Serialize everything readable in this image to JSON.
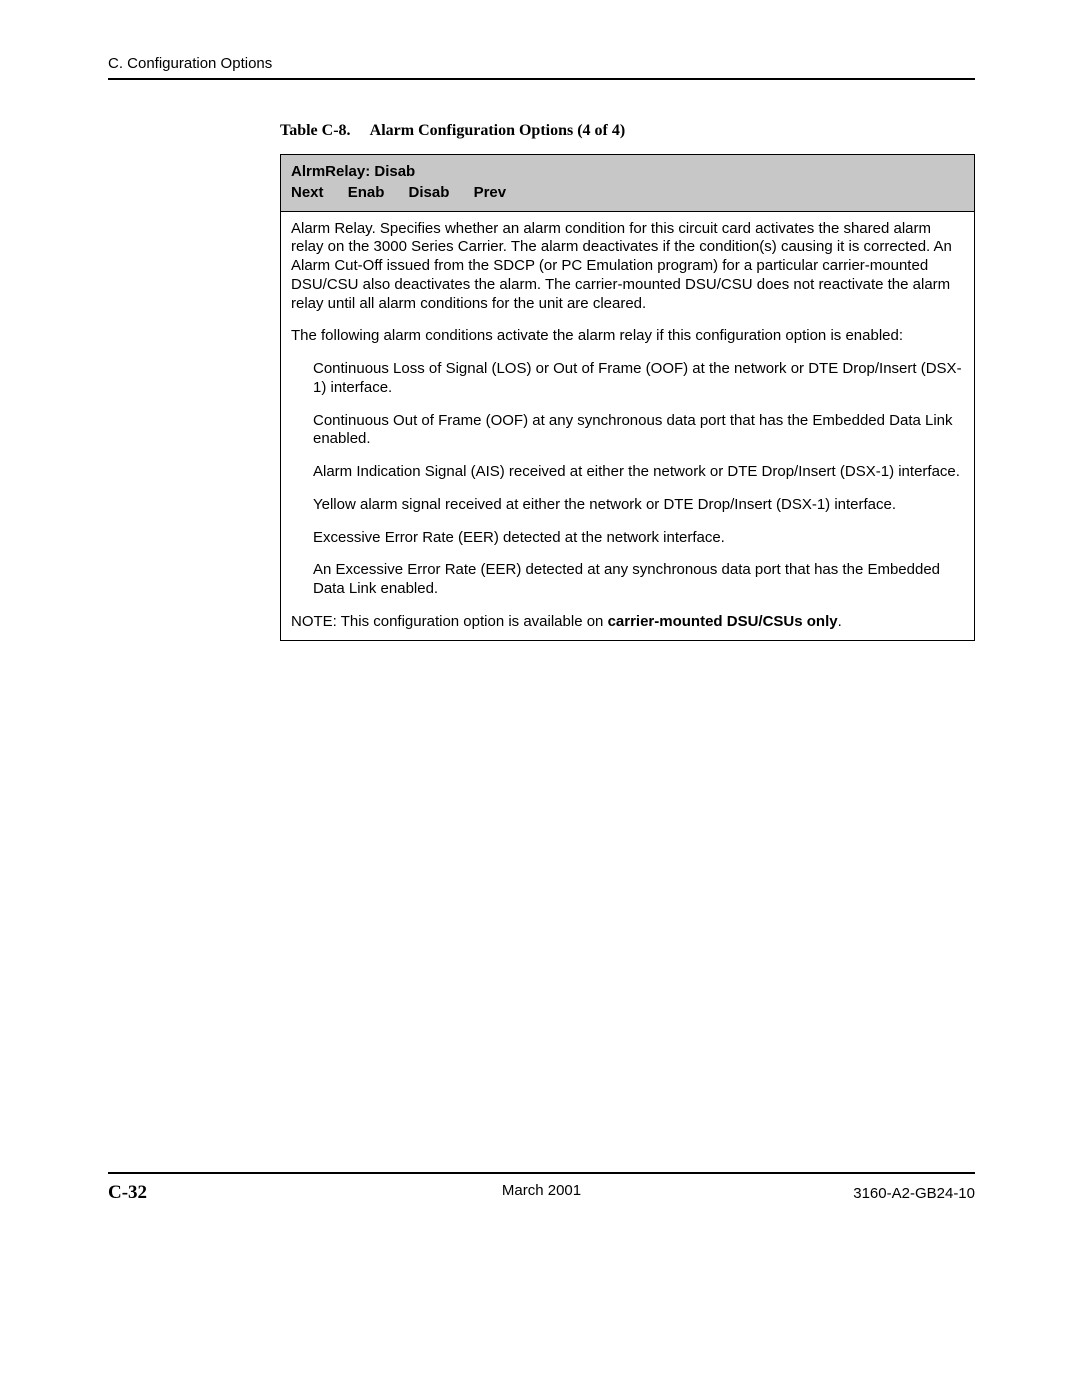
{
  "header": {
    "section": "C. Configuration Options"
  },
  "table": {
    "caption_label": "Table C-8.",
    "caption_title": "Alarm Configuration Options (4 of 4)",
    "menu": {
      "title": "AlrmRelay: Disab",
      "items": [
        "Next",
        "Enab",
        "Disab",
        "Prev"
      ]
    },
    "body": {
      "intro_para": "Alarm Relay. Specifies whether an alarm condition for this circuit card activates the shared alarm relay on the 3000 Series Carrier. The alarm deactivates if the condition(s) causing it is corrected. An Alarm Cut-Off issued from the SDCP (or PC Emulation program) for a particular carrier-mounted DSU/CSU also deactivates the alarm. The carrier-mounted DSU/CSU does not reactivate the alarm relay until all alarm conditions for the unit are cleared.",
      "conditions_intro": "The following alarm conditions activate the alarm relay if this configuration option is enabled:",
      "conditions": [
        "Continuous Loss of Signal (LOS) or Out of Frame (OOF) at the network or DTE Drop/Insert (DSX-1) interface.",
        "Continuous Out of Frame (OOF) at any synchronous data port that has the Embedded Data Link enabled.",
        "Alarm Indication Signal (AIS) received at either the network or DTE Drop/Insert (DSX-1) interface.",
        "Yellow alarm signal received at either the network or DTE Drop/Insert (DSX-1) interface.",
        "Excessive Error Rate (EER) detected at the network interface.",
        "An Excessive Error Rate (EER) detected at any synchronous data port that has the Embedded Data Link enabled."
      ],
      "note_prefix": "NOTE: This configuration option is available on ",
      "note_bold": "carrier-mounted DSU/CSUs only",
      "note_suffix": "."
    }
  },
  "footer": {
    "page_number": "C-32",
    "date": "March 2001",
    "doc_id": "3160-A2-GB24-10"
  }
}
